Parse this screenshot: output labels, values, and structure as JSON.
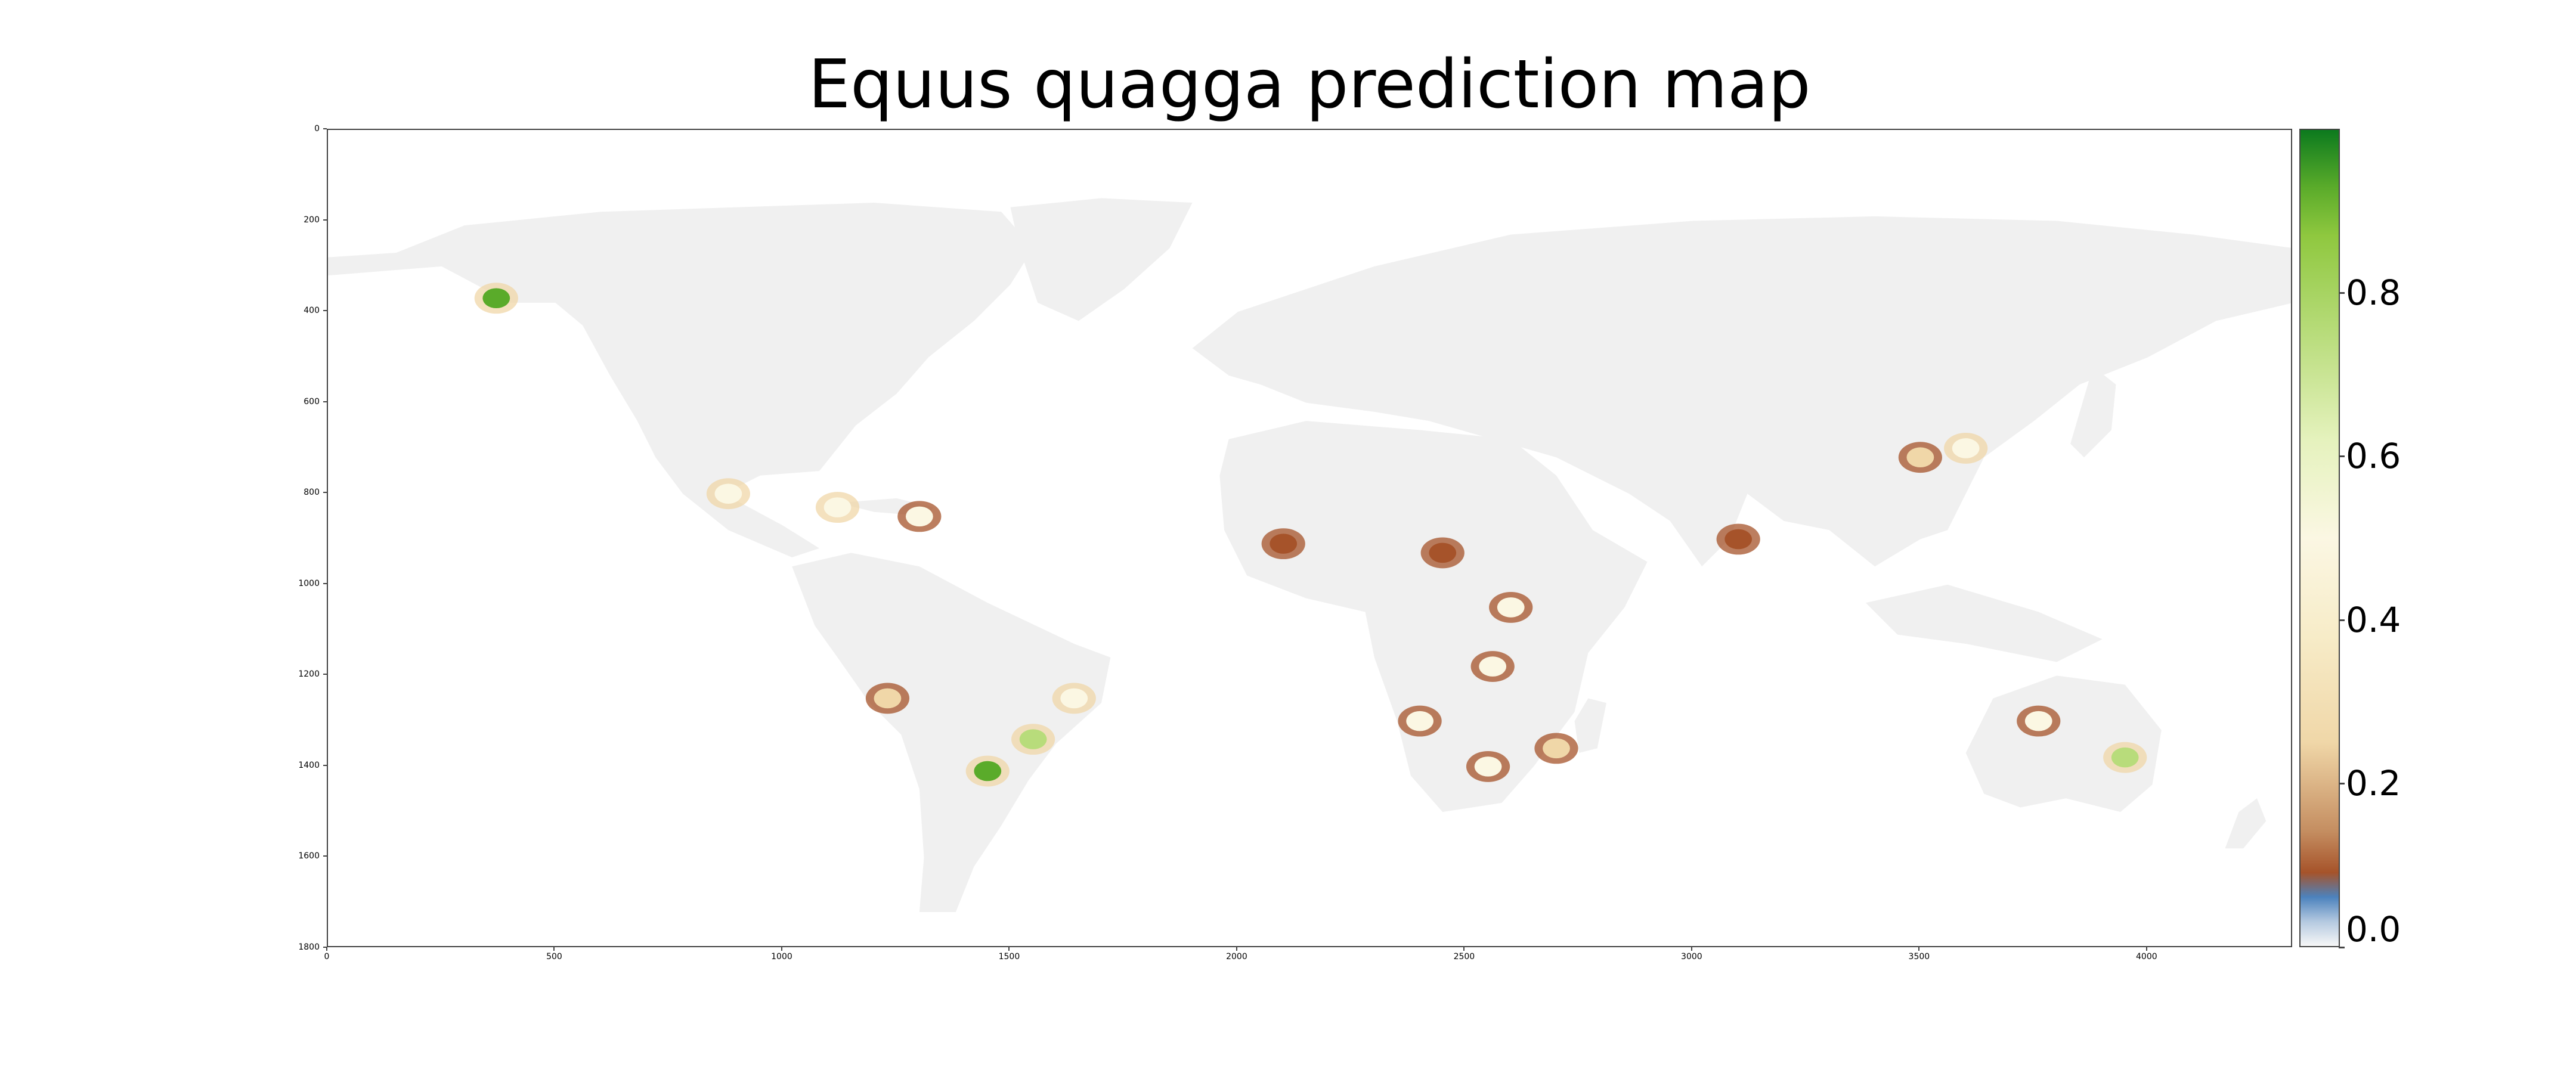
{
  "title": "Equus quagga prediction map",
  "axes": {
    "x_ticks": [
      "0",
      "500",
      "1000",
      "1500",
      "2000",
      "2500",
      "3000",
      "3500",
      "4000"
    ],
    "y_ticks": [
      "0",
      "200",
      "400",
      "600",
      "800",
      "1000",
      "1200",
      "1400",
      "1600",
      "1800"
    ],
    "xlim": [
      0,
      4320
    ],
    "ylim": [
      1800,
      0
    ]
  },
  "colorbar": {
    "ticks": [
      "0.0",
      "0.2",
      "0.4",
      "0.6",
      "0.8"
    ],
    "range": [
      0,
      1
    ],
    "colors": [
      "#f7f7f7",
      "#4c82bd",
      "#a6532a",
      "#f0d7a8",
      "#fbf7e3",
      "#b8dc7b",
      "#5aab2a",
      "#0c7a1e"
    ]
  },
  "colors": {
    "land": "#f0f0f0",
    "ocean": "#ffffff"
  },
  "chart_data": {
    "type": "heatmap",
    "title": "Equus quagga prediction map",
    "xlim": [
      0,
      4320
    ],
    "ylim": [
      1800,
      0
    ],
    "colorbar_range": [
      0,
      1
    ],
    "colorbar_ticks": [
      0.0,
      0.2,
      0.4,
      0.6,
      0.8
    ],
    "hotspots": [
      {
        "x": 370,
        "y": 370,
        "value": 0.9
      },
      {
        "x": 880,
        "y": 800,
        "value": 0.7
      },
      {
        "x": 1120,
        "y": 830,
        "value": 0.7
      },
      {
        "x": 1300,
        "y": 850,
        "value": 0.6
      },
      {
        "x": 1230,
        "y": 1250,
        "value": 0.3
      },
      {
        "x": 1450,
        "y": 1410,
        "value": 0.9
      },
      {
        "x": 1550,
        "y": 1340,
        "value": 0.8
      },
      {
        "x": 1640,
        "y": 1250,
        "value": 0.7
      },
      {
        "x": 2100,
        "y": 910,
        "value": 0.1
      },
      {
        "x": 2450,
        "y": 930,
        "value": 0.15
      },
      {
        "x": 2400,
        "y": 1300,
        "value": 0.5
      },
      {
        "x": 2560,
        "y": 1180,
        "value": 0.6
      },
      {
        "x": 2600,
        "y": 1050,
        "value": 0.5
      },
      {
        "x": 2550,
        "y": 1400,
        "value": 0.5
      },
      {
        "x": 2700,
        "y": 1360,
        "value": 0.3
      },
      {
        "x": 3100,
        "y": 900,
        "value": 0.2
      },
      {
        "x": 3500,
        "y": 720,
        "value": 0.4
      },
      {
        "x": 3600,
        "y": 700,
        "value": 0.7
      },
      {
        "x": 3760,
        "y": 1300,
        "value": 0.6
      },
      {
        "x": 3950,
        "y": 1380,
        "value": 0.8
      }
    ]
  }
}
